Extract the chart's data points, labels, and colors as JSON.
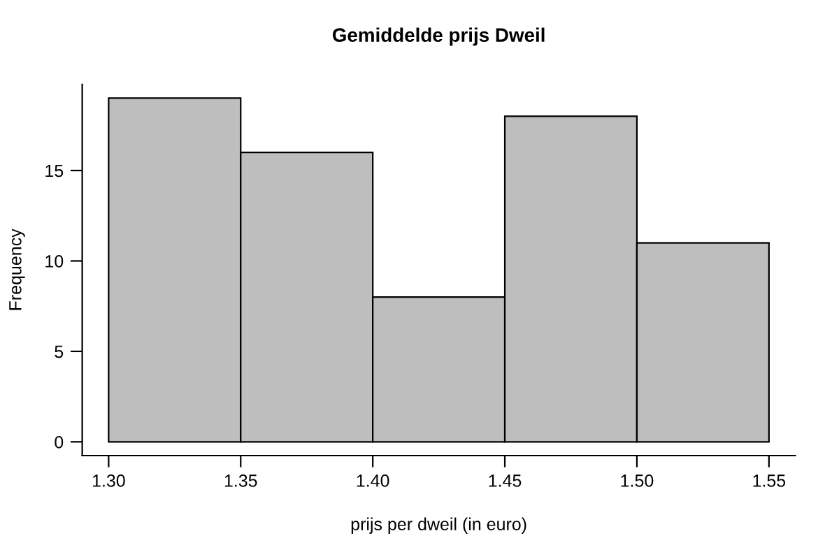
{
  "chart_data": {
    "type": "histogram",
    "title": "Gemiddelde prijs Dweil",
    "xlabel": "prijs per dweil (in euro)",
    "ylabel": "Frequency",
    "bins": [
      1.3,
      1.35,
      1.4,
      1.45,
      1.5,
      1.55
    ],
    "values": [
      19,
      16,
      8,
      18,
      11
    ],
    "color": "#bebebe",
    "xlim": [
      1.29,
      1.56
    ],
    "ylim": [
      -0.76,
      19.76
    ],
    "xticks": [
      {
        "value": 1.3,
        "label": "1.30"
      },
      {
        "value": 1.35,
        "label": "1.35"
      },
      {
        "value": 1.4,
        "label": "1.40"
      },
      {
        "value": 1.45,
        "label": "1.45"
      },
      {
        "value": 1.5,
        "label": "1.50"
      },
      {
        "value": 1.55,
        "label": "1.55"
      }
    ],
    "yticks": [
      0,
      5,
      10,
      15
    ],
    "grid": false
  }
}
